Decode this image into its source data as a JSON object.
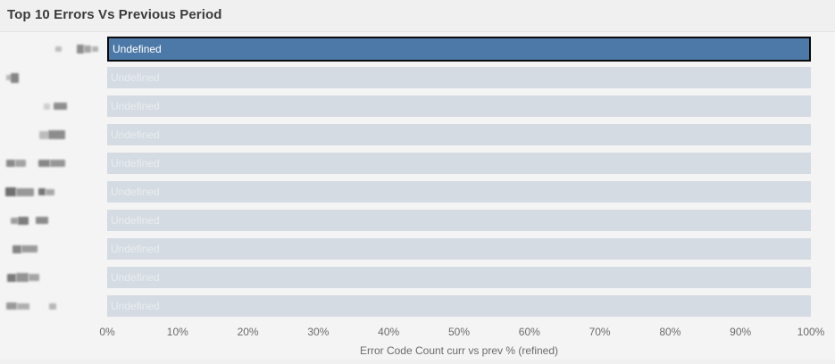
{
  "title": "Top 10 Errors Vs Previous Period",
  "chart_data": {
    "type": "bar",
    "orientation": "horizontal",
    "title": "Top 10 Errors Vs Previous Period",
    "xlabel": "Error Code Count curr vs prev % (refined)",
    "ylabel": "",
    "xlim": [
      0,
      100
    ],
    "x_tick_labels": [
      "0%",
      "10%",
      "20%",
      "30%",
      "40%",
      "50%",
      "60%",
      "70%",
      "80%",
      "90%",
      "100%"
    ],
    "grid": false,
    "legend": false,
    "bars": [
      {
        "label": "Undefined",
        "value": 100,
        "highlighted": true
      },
      {
        "label": "Undefined",
        "value": 100,
        "highlighted": false
      },
      {
        "label": "Undefined",
        "value": 100,
        "highlighted": false
      },
      {
        "label": "Undefined",
        "value": 100,
        "highlighted": false
      },
      {
        "label": "Undefined",
        "value": 100,
        "highlighted": false
      },
      {
        "label": "Undefined",
        "value": 100,
        "highlighted": false
      },
      {
        "label": "Undefined",
        "value": 100,
        "highlighted": false
      },
      {
        "label": "Undefined",
        "value": 100,
        "highlighted": false
      },
      {
        "label": "Undefined",
        "value": 100,
        "highlighted": false
      },
      {
        "label": "Undefined",
        "value": 100,
        "highlighted": false
      }
    ],
    "colors": {
      "highlight_bar": "#4d79a8",
      "highlight_border": "#0a0a0a",
      "highlight_label": "#ffffff",
      "bar": "#d5dbe2",
      "bar_label": "#e9edf1",
      "axis_text": "#6b6b6b",
      "panel_bg": "#f4f4f4",
      "header_bg": "#f0f0f0",
      "title_text": "#3b3b3b"
    },
    "row_axis_labels_redacted": true,
    "redacted_row_labels": [
      [
        {
          "x": 62,
          "w": 7,
          "h": 6,
          "c": "#bdbdbd"
        },
        {
          "x": 86,
          "w": 8,
          "h": 10,
          "c": "#8d8d8d"
        },
        {
          "x": 94,
          "w": 8,
          "h": 8,
          "c": "#a6a6a6"
        },
        {
          "x": 103,
          "w": 7,
          "h": 6,
          "c": "#b3b3b3"
        }
      ],
      [
        {
          "x": 7,
          "w": 6,
          "h": 6,
          "c": "#b8b8b8"
        },
        {
          "x": 12,
          "w": 9,
          "h": 11,
          "c": "#868686"
        }
      ],
      [
        {
          "x": 49,
          "w": 7,
          "h": 7,
          "c": "#cfcfcf"
        },
        {
          "x": 60,
          "w": 15,
          "h": 8,
          "c": "#8f8f8f"
        }
      ],
      [
        {
          "x": 44,
          "w": 10,
          "h": 9,
          "c": "#bcbcbc"
        },
        {
          "x": 54,
          "w": 19,
          "h": 10,
          "c": "#8d8d8d"
        }
      ],
      [
        {
          "x": 7,
          "w": 10,
          "h": 8,
          "c": "#8a8a8a"
        },
        {
          "x": 17,
          "w": 12,
          "h": 8,
          "c": "#a3a3a3"
        },
        {
          "x": 43,
          "w": 13,
          "h": 8,
          "c": "#888888"
        },
        {
          "x": 56,
          "w": 17,
          "h": 8,
          "c": "#969696"
        }
      ],
      [
        {
          "x": 6,
          "w": 12,
          "h": 10,
          "c": "#6f6f6f"
        },
        {
          "x": 18,
          "w": 20,
          "h": 9,
          "c": "#989898"
        },
        {
          "x": 43,
          "w": 8,
          "h": 8,
          "c": "#777777"
        },
        {
          "x": 51,
          "w": 10,
          "h": 7,
          "c": "#a8a8a8"
        }
      ],
      [
        {
          "x": 12,
          "w": 8,
          "h": 7,
          "c": "#9e9e9e"
        },
        {
          "x": 20,
          "w": 12,
          "h": 9,
          "c": "#7d7d7d"
        },
        {
          "x": 40,
          "w": 14,
          "h": 8,
          "c": "#8b8b8b"
        }
      ],
      [
        {
          "x": 14,
          "w": 10,
          "h": 9,
          "c": "#858585"
        },
        {
          "x": 24,
          "w": 18,
          "h": 8,
          "c": "#9b9b9b"
        }
      ],
      [
        {
          "x": 8,
          "w": 10,
          "h": 9,
          "c": "#7b7b7b"
        },
        {
          "x": 18,
          "w": 14,
          "h": 10,
          "c": "#949494"
        },
        {
          "x": 32,
          "w": 12,
          "h": 8,
          "c": "#a5a5a5"
        }
      ],
      [
        {
          "x": 7,
          "w": 12,
          "h": 8,
          "c": "#9a9a9a"
        },
        {
          "x": 19,
          "w": 14,
          "h": 7,
          "c": "#b0b0b0"
        },
        {
          "x": 55,
          "w": 8,
          "h": 7,
          "c": "#b7b7b7"
        }
      ]
    ]
  }
}
